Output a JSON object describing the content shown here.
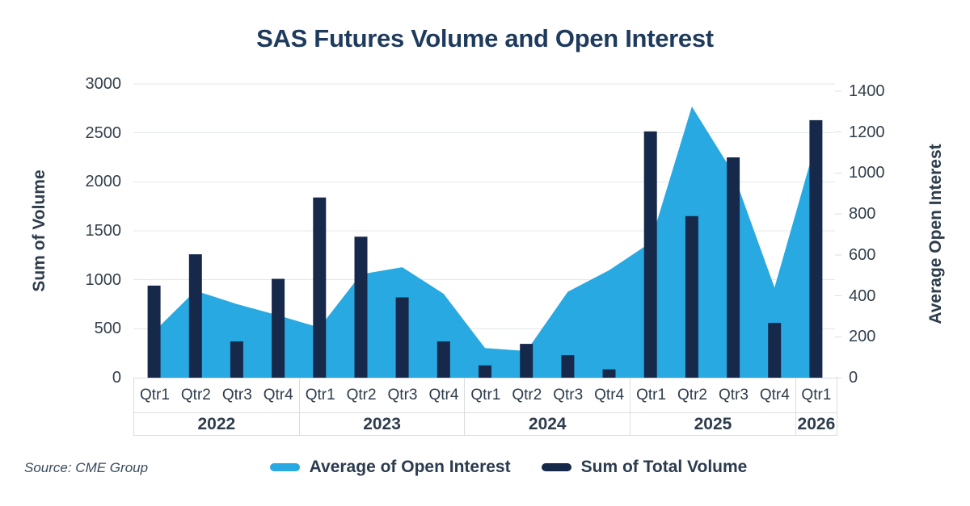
{
  "source": "Source: CME Group",
  "colors": {
    "bar_navy": "#16294A",
    "area_blue": "#29A9E1",
    "title_navy": "#1E3A5C",
    "gridline": "#E3E7EB",
    "axis_box_border": "#D9DDE1"
  },
  "chart_data": {
    "type": "combo",
    "title": "SAS Futures Volume and Open Interest",
    "categories": [
      {
        "year": "2022",
        "quarters": [
          "Qtr1",
          "Qtr2",
          "Qtr3",
          "Qtr4"
        ]
      },
      {
        "year": "2023",
        "quarters": [
          "Qtr1",
          "Qtr2",
          "Qtr3",
          "Qtr4"
        ]
      },
      {
        "year": "2024",
        "quarters": [
          "Qtr1",
          "Qtr2",
          "Qtr3",
          "Qtr4"
        ]
      },
      {
        "year": "2025",
        "quarters": [
          "Qtr1",
          "Qtr2",
          "Qtr3",
          "Qtr4"
        ]
      },
      {
        "year": "2026",
        "quarters": [
          "Qtr1"
        ]
      }
    ],
    "series": [
      {
        "name": "Average of Open Interest",
        "type": "area",
        "axis": "right",
        "color": "#29A9E1",
        "values": [
          225,
          425,
          360,
          305,
          245,
          505,
          540,
          410,
          145,
          130,
          420,
          525,
          660,
          1325,
          1000,
          440,
          1150
        ]
      },
      {
        "name": "Sum of Total Volume",
        "type": "bar",
        "axis": "left",
        "color": "#16294A",
        "values": [
          940,
          1260,
          370,
          1010,
          1840,
          1440,
          820,
          370,
          125,
          345,
          230,
          85,
          2515,
          1650,
          2250,
          560,
          2630
        ]
      }
    ],
    "axes": {
      "left": {
        "label": "Sum of Volume",
        "min": 0,
        "max": 3000,
        "step": 500,
        "ticks": [
          0,
          500,
          1000,
          1500,
          2000,
          2500,
          3000
        ]
      },
      "right": {
        "label": "Average Open Interest",
        "min": 0,
        "max": 1400,
        "step": 200,
        "ticks": [
          0,
          200,
          400,
          600,
          800,
          1000,
          1200,
          1400
        ]
      }
    },
    "grid": "horizontal",
    "legend_position": "bottom"
  }
}
